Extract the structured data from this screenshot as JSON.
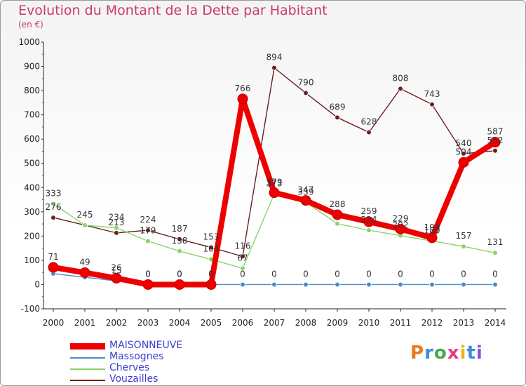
{
  "chart_data": {
    "type": "line",
    "title": "Evolution du Montant de la Dette par Habitant",
    "subtitle": "(en €)",
    "categories": [
      "2000",
      "2001",
      "2002",
      "2003",
      "2004",
      "2005",
      "2006",
      "2007",
      "2008",
      "2009",
      "2010",
      "2011",
      "2012",
      "2013",
      "2014"
    ],
    "ylim": [
      -100,
      1000
    ],
    "yticks": [
      -100,
      0,
      100,
      200,
      300,
      400,
      500,
      600,
      700,
      800,
      900,
      1000
    ],
    "ytick_labels": [
      "-100",
      "0",
      "100",
      "200",
      "300",
      "400",
      "500",
      "600",
      "700",
      "800",
      "900",
      "1000"
    ],
    "grid": false,
    "legend_position": "bottom-left",
    "series": [
      {
        "name": "MAISONNEUVE",
        "color": "#ee0000",
        "values": [
          71,
          49,
          26,
          0,
          0,
          0,
          766,
          379,
          347,
          288,
          259,
          229,
          193,
          504,
          587
        ],
        "labels": [
          "71",
          "49",
          "26",
          "0",
          "0",
          "0",
          "766",
          "379",
          "347",
          "288",
          "259",
          "229",
          "193",
          "504",
          "587"
        ]
      },
      {
        "name": "Massognes",
        "color": "#4a8ccc",
        "values": [
          45,
          30,
          15,
          0,
          0,
          0,
          0,
          0,
          0,
          0,
          0,
          0,
          0,
          0,
          0
        ],
        "labels": [
          "",
          "",
          "15",
          "0",
          "0",
          "0",
          "0",
          "0",
          "0",
          "0",
          "0",
          "0",
          "0",
          "0",
          "0"
        ]
      },
      {
        "name": "Cherves",
        "color": "#88d566",
        "values": [
          333,
          245,
          234,
          179,
          138,
          104,
          67,
          373,
          339,
          251,
          224,
          202,
          180,
          157,
          131
        ],
        "labels": [
          "333",
          "245",
          "234",
          "179",
          "138",
          "104",
          "67",
          "373",
          "339",
          "",
          "224",
          "202",
          "180",
          "157",
          "131"
        ]
      },
      {
        "name": "Vouzailles",
        "color": "#6b1f1f",
        "values": [
          276,
          245,
          213,
          224,
          187,
          153,
          116,
          894,
          790,
          689,
          628,
          808,
          743,
          540,
          552
        ],
        "labels": [
          "276",
          "",
          "213",
          "224",
          "187",
          "153",
          "116",
          "894",
          "790",
          "689",
          "628",
          "808",
          "743",
          "540",
          "552"
        ]
      }
    ]
  },
  "logo_text": "Proxiti",
  "logo_colors": [
    "#e87a1c",
    "#3a8fd8",
    "#46a84a",
    "#e83a8a",
    "#f0b21a",
    "#3a8fd8",
    "#8a4fd0"
  ]
}
